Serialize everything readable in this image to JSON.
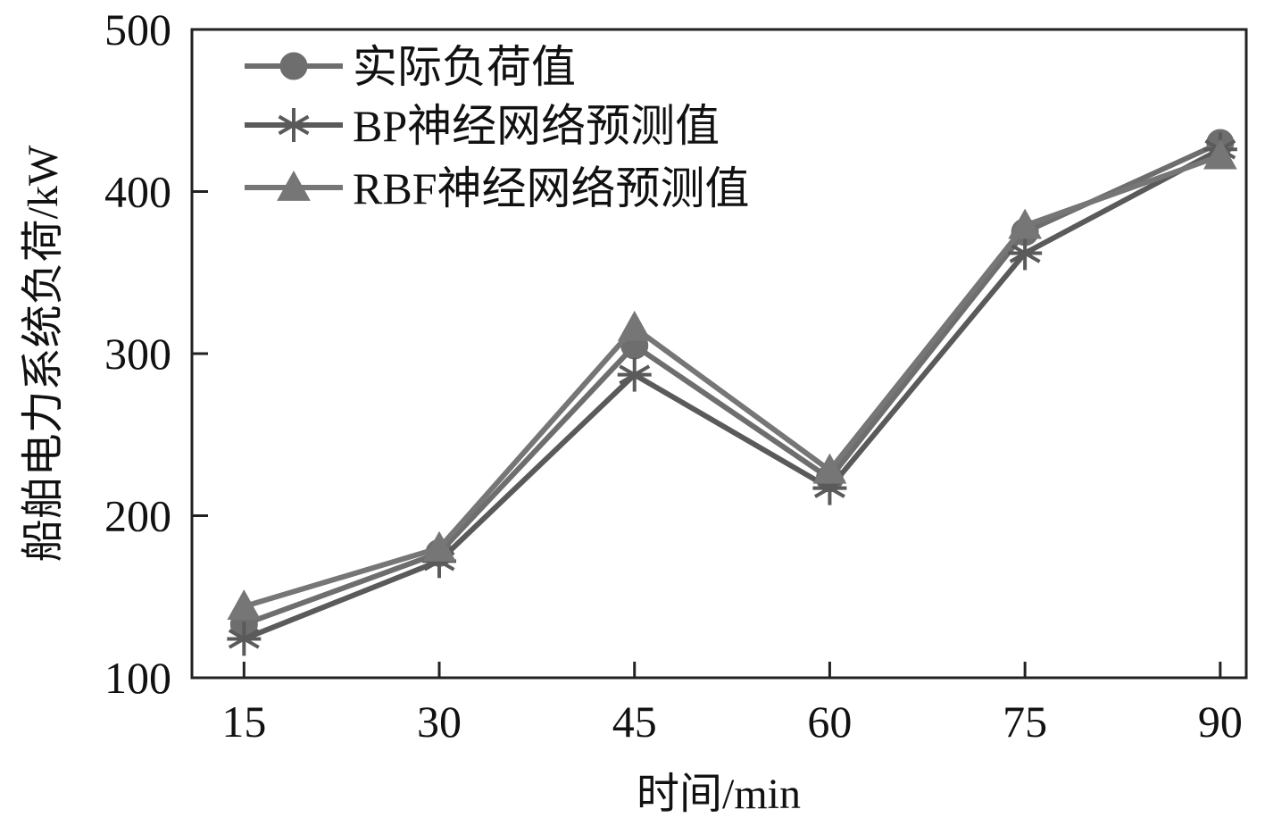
{
  "chart_data": {
    "type": "line",
    "xlabel": "时间/min",
    "ylabel": "船舶电力系统负荷/kW",
    "x": [
      15,
      30,
      45,
      60,
      75,
      90
    ],
    "x_tick_labels": [
      "15",
      "30",
      "45",
      "60",
      "75",
      "90"
    ],
    "xlim": [
      11,
      92
    ],
    "ylim": [
      100,
      500
    ],
    "y_ticks": [
      100,
      200,
      300,
      400,
      500
    ],
    "y_tick_labels": [
      "100",
      "200",
      "300",
      "400",
      "500"
    ],
    "grid": false,
    "legend_position": "top-left",
    "series": [
      {
        "name": "实际负荷值",
        "marker": "circle",
        "color": "#6e6e6e",
        "values": [
          133,
          177,
          305,
          223,
          375,
          430
        ]
      },
      {
        "name": "BP神经网络预测值",
        "marker": "asterisk",
        "color": "#5a5a5a",
        "values": [
          124,
          172,
          287,
          217,
          362,
          426
        ]
      },
      {
        "name": "RBF神经网络预测值",
        "marker": "triangle",
        "color": "#767676",
        "values": [
          144,
          180,
          316,
          228,
          379,
          422
        ]
      }
    ]
  }
}
